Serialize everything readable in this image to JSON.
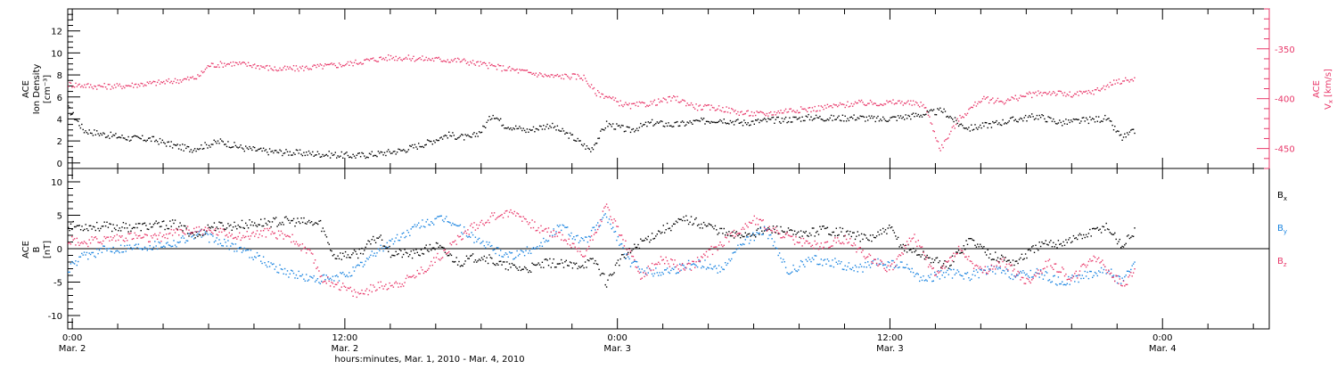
{
  "xlabel": "hours:minutes, Mar. 1, 2010 - Mar. 4, 2010",
  "x_ticks": [
    {
      "t": "0:00",
      "d": "Mar. 2",
      "hour": 24
    },
    {
      "t": "12:00",
      "d": "Mar. 2",
      "hour": 36
    },
    {
      "t": "0:00",
      "d": "Mar. 3",
      "hour": 48
    },
    {
      "t": "12:00",
      "d": "Mar. 3",
      "hour": 60
    },
    {
      "t": "0:00",
      "d": "Mar. 4",
      "hour": 72
    }
  ],
  "x_range_hours": [
    23.8,
    76.7
  ],
  "colors": {
    "black": "#000000",
    "blue": "#1a84e0",
    "pink": "#e8386a"
  },
  "chart_data": [
    {
      "type": "scatter",
      "left_ylabel_lines": [
        "ACE",
        "Ion Density",
        "[cm⁻³]"
      ],
      "right_ylabel": "ACE Vₓ [km/s]",
      "right_ylabel_text": "V",
      "right_ylabel_sub": "x",
      "right_ylabel_unit": "[km/s]",
      "right_ylabel_top": "ACE",
      "ylim_left": [
        -0.5,
        14
      ],
      "ylim_right": [
        -470,
        -310
      ],
      "left_ticks": [
        "0",
        "2",
        "4",
        "6",
        "8",
        "10",
        "12"
      ],
      "right_ticks": [
        "-350",
        "-400",
        "-450"
      ],
      "series": [
        {
          "axis": "left",
          "color": "#000000",
          "points": [
            [
              23.8,
              5.0
            ],
            [
              24.5,
              3.0
            ],
            [
              25.5,
              2.6
            ],
            [
              26.5,
              2.3
            ],
            [
              27.5,
              2.2
            ],
            [
              28.5,
              1.6
            ],
            [
              29.2,
              1.3
            ],
            [
              30.5,
              2.0
            ],
            [
              31.5,
              1.4
            ],
            [
              32.5,
              1.1
            ],
            [
              33.5,
              1.0
            ],
            [
              34.5,
              0.9
            ],
            [
              35.5,
              0.8
            ],
            [
              36.5,
              0.7
            ],
            [
              37.5,
              0.9
            ],
            [
              38.5,
              1.2
            ],
            [
              39.5,
              1.8
            ],
            [
              40.5,
              2.6
            ],
            [
              41.5,
              2.3
            ],
            [
              42.0,
              3.0
            ],
            [
              42.5,
              4.5
            ],
            [
              43.0,
              3.5
            ],
            [
              44.0,
              3.0
            ],
            [
              45.0,
              3.5
            ],
            [
              46.0,
              2.4
            ],
            [
              46.8,
              1.2
            ],
            [
              47.5,
              3.6
            ],
            [
              48.5,
              3.0
            ],
            [
              49.5,
              3.7
            ],
            [
              50.5,
              3.5
            ],
            [
              51.5,
              3.8
            ],
            [
              52.5,
              4.0
            ],
            [
              53.5,
              3.7
            ],
            [
              54.5,
              3.9
            ],
            [
              55.5,
              4.0
            ],
            [
              56.5,
              4.2
            ],
            [
              57.5,
              4.1
            ],
            [
              58.5,
              4.2
            ],
            [
              59.5,
              4.0
            ],
            [
              60.5,
              4.2
            ],
            [
              61.5,
              4.5
            ],
            [
              62.3,
              4.8
            ],
            [
              63.0,
              3.6
            ],
            [
              63.5,
              3.2
            ],
            [
              64.5,
              3.6
            ],
            [
              65.5,
              4.0
            ],
            [
              66.5,
              4.3
            ],
            [
              67.5,
              3.7
            ],
            [
              68.5,
              3.9
            ],
            [
              69.5,
              4.1
            ],
            [
              70.2,
              2.3
            ],
            [
              70.8,
              3.0
            ]
          ]
        },
        {
          "axis": "right",
          "color": "#e8386a",
          "points": [
            [
              23.8,
              -385
            ],
            [
              25.0,
              -387
            ],
            [
              26.0,
              -387
            ],
            [
              27.0,
              -385
            ],
            [
              28.0,
              -383
            ],
            [
              29.0,
              -380
            ],
            [
              29.5,
              -378
            ],
            [
              30.0,
              -366
            ],
            [
              31.0,
              -364
            ],
            [
              32.0,
              -366
            ],
            [
              33.0,
              -370
            ],
            [
              34.0,
              -369
            ],
            [
              35.0,
              -367
            ],
            [
              36.0,
              -365
            ],
            [
              37.0,
              -361
            ],
            [
              38.0,
              -358
            ],
            [
              39.0,
              -359
            ],
            [
              40.0,
              -360
            ],
            [
              41.0,
              -361
            ],
            [
              42.0,
              -365
            ],
            [
              43.0,
              -369
            ],
            [
              44.0,
              -373
            ],
            [
              45.0,
              -377
            ],
            [
              46.0,
              -377
            ],
            [
              46.5,
              -378
            ],
            [
              47.0,
              -393
            ],
            [
              47.5,
              -397
            ],
            [
              48.0,
              -403
            ],
            [
              48.5,
              -407
            ],
            [
              49.5,
              -404
            ],
            [
              50.5,
              -399
            ],
            [
              51.5,
              -408
            ],
            [
              52.5,
              -409
            ],
            [
              53.5,
              -414
            ],
            [
              54.5,
              -415
            ],
            [
              55.5,
              -411
            ],
            [
              56.5,
              -410
            ],
            [
              57.5,
              -407
            ],
            [
              58.5,
              -404
            ],
            [
              59.5,
              -404
            ],
            [
              60.5,
              -403
            ],
            [
              61.5,
              -406
            ],
            [
              62.2,
              -450
            ],
            [
              63.0,
              -420
            ],
            [
              64.0,
              -400
            ],
            [
              65.0,
              -402
            ],
            [
              66.0,
              -396
            ],
            [
              67.0,
              -393
            ],
            [
              68.0,
              -396
            ],
            [
              69.0,
              -392
            ],
            [
              70.0,
              -382
            ],
            [
              70.8,
              -380
            ]
          ]
        }
      ]
    },
    {
      "type": "scatter",
      "left_ylabel_lines": [
        "ACE",
        "B",
        "[nT]"
      ],
      "ylim": [
        -12,
        12
      ],
      "left_ticks": [
        "10",
        "5",
        "0",
        "-5",
        "-10"
      ],
      "legend": [
        {
          "name": "B",
          "sub": "x",
          "color": "#000000"
        },
        {
          "name": "B",
          "sub": "y",
          "color": "#1a84e0"
        },
        {
          "name": "B",
          "sub": "z",
          "color": "#e8386a"
        }
      ],
      "legend_placement": "right",
      "zero_line": true,
      "series": [
        {
          "name": "Bx",
          "color": "#000000",
          "points": [
            [
              23.8,
              3.5
            ],
            [
              25.0,
              3.4
            ],
            [
              26.5,
              3.3
            ],
            [
              28.5,
              3.7
            ],
            [
              29.5,
              2.0
            ],
            [
              30.0,
              3.4
            ],
            [
              31.0,
              3.5
            ],
            [
              32.5,
              4.0
            ],
            [
              33.5,
              4.2
            ],
            [
              34.9,
              3.8
            ],
            [
              35.5,
              -1.0
            ],
            [
              36.5,
              -0.8
            ],
            [
              37.5,
              2.0
            ],
            [
              38.0,
              -0.5
            ],
            [
              39.0,
              -0.8
            ],
            [
              40.0,
              0.5
            ],
            [
              41.0,
              -2.0
            ],
            [
              42.0,
              -1.0
            ],
            [
              43.0,
              -2.5
            ],
            [
              44.0,
              -3.0
            ],
            [
              45.0,
              -2.0
            ],
            [
              46.0,
              -2.5
            ],
            [
              47.0,
              -1.8
            ],
            [
              47.5,
              -5.0
            ],
            [
              48.0,
              -2.0
            ],
            [
              49.0,
              1.0
            ],
            [
              50.0,
              3.0
            ],
            [
              51.0,
              4.5
            ],
            [
              52.0,
              3.5
            ],
            [
              53.0,
              2.0
            ],
            [
              54.0,
              2.5
            ],
            [
              55.0,
              3.0
            ],
            [
              56.0,
              2.0
            ],
            [
              57.0,
              3.0
            ],
            [
              58.0,
              2.5
            ],
            [
              59.0,
              1.5
            ],
            [
              60.0,
              3.0
            ],
            [
              60.5,
              0.5
            ],
            [
              61.5,
              -1.0
            ],
            [
              62.5,
              -2.5
            ],
            [
              63.5,
              1.5
            ],
            [
              64.5,
              -1.0
            ],
            [
              65.5,
              -2.0
            ],
            [
              66.5,
              0.5
            ],
            [
              67.5,
              1.0
            ],
            [
              68.5,
              2.0
            ],
            [
              69.5,
              3.5
            ],
            [
              70.2,
              0.5
            ],
            [
              70.8,
              3.0
            ]
          ]
        },
        {
          "name": "By",
          "color": "#1a84e0",
          "points": [
            [
              23.8,
              -3.0
            ],
            [
              24.5,
              -1.0
            ],
            [
              25.5,
              0.0
            ],
            [
              26.5,
              0.3
            ],
            [
              27.5,
              0.6
            ],
            [
              28.5,
              1.0
            ],
            [
              29.5,
              2.5
            ],
            [
              30.5,
              1.0
            ],
            [
              31.5,
              0.0
            ],
            [
              32.5,
              -2.0
            ],
            [
              33.5,
              -3.5
            ],
            [
              34.5,
              -4.5
            ],
            [
              35.5,
              -4.5
            ],
            [
              36.5,
              -3.0
            ],
            [
              37.5,
              0.0
            ],
            [
              38.5,
              2.0
            ],
            [
              39.5,
              4.0
            ],
            [
              40.5,
              4.5
            ],
            [
              41.5,
              2.0
            ],
            [
              42.5,
              0.0
            ],
            [
              43.5,
              -1.0
            ],
            [
              44.5,
              0.5
            ],
            [
              45.5,
              3.5
            ],
            [
              46.5,
              1.0
            ],
            [
              47.5,
              5.0
            ],
            [
              48.5,
              -2.0
            ],
            [
              49.5,
              -3.5
            ],
            [
              50.5,
              -3.0
            ],
            [
              51.5,
              -2.0
            ],
            [
              52.5,
              -3.0
            ],
            [
              53.5,
              1.0
            ],
            [
              54.5,
              3.0
            ],
            [
              55.5,
              -3.5
            ],
            [
              56.5,
              -1.5
            ],
            [
              57.5,
              -2.0
            ],
            [
              58.5,
              -3.0
            ],
            [
              59.5,
              -2.0
            ],
            [
              60.5,
              -2.5
            ],
            [
              61.5,
              -4.5
            ],
            [
              62.5,
              -3.5
            ],
            [
              63.5,
              -4.0
            ],
            [
              64.5,
              -3.0
            ],
            [
              65.5,
              -4.0
            ],
            [
              66.5,
              -3.5
            ],
            [
              67.5,
              -5.0
            ],
            [
              68.5,
              -4.0
            ],
            [
              69.5,
              -3.0
            ],
            [
              70.2,
              -5.0
            ],
            [
              70.8,
              -2.0
            ]
          ]
        },
        {
          "name": "Bz",
          "color": "#e8386a",
          "points": [
            [
              23.8,
              1.5
            ],
            [
              24.5,
              1.0
            ],
            [
              25.5,
              1.5
            ],
            [
              26.5,
              2.0
            ],
            [
              27.5,
              1.5
            ],
            [
              28.5,
              2.5
            ],
            [
              29.5,
              3.0
            ],
            [
              30.5,
              2.5
            ],
            [
              31.5,
              2.0
            ],
            [
              32.5,
              2.5
            ],
            [
              33.5,
              2.0
            ],
            [
              34.5,
              -1.0
            ],
            [
              35.0,
              -4.5
            ],
            [
              35.5,
              -5.0
            ],
            [
              36.5,
              -6.8
            ],
            [
              37.5,
              -5.5
            ],
            [
              38.5,
              -5.0
            ],
            [
              39.5,
              -3.0
            ],
            [
              40.5,
              0.0
            ],
            [
              41.5,
              3.0
            ],
            [
              42.5,
              5.0
            ],
            [
              43.5,
              5.5
            ],
            [
              44.5,
              3.0
            ],
            [
              45.5,
              2.0
            ],
            [
              46.5,
              -1.0
            ],
            [
              47.5,
              6.5
            ],
            [
              48.0,
              3.0
            ],
            [
              49.0,
              -4.0
            ],
            [
              50.0,
              -1.5
            ],
            [
              51.0,
              -3.0
            ],
            [
              52.0,
              -0.5
            ],
            [
              53.0,
              2.0
            ],
            [
              54.0,
              4.5
            ],
            [
              55.0,
              2.5
            ],
            [
              56.0,
              1.0
            ],
            [
              57.0,
              0.5
            ],
            [
              58.0,
              1.5
            ],
            [
              59.0,
              -1.0
            ],
            [
              60.0,
              -3.0
            ],
            [
              61.0,
              2.0
            ],
            [
              62.0,
              -4.0
            ],
            [
              63.0,
              0.0
            ],
            [
              64.0,
              -3.5
            ],
            [
              65.0,
              -2.0
            ],
            [
              66.0,
              -5.0
            ],
            [
              67.0,
              -2.0
            ],
            [
              68.0,
              -4.5
            ],
            [
              69.0,
              -1.0
            ],
            [
              70.2,
              -5.5
            ],
            [
              70.8,
              -3.0
            ]
          ]
        }
      ]
    }
  ]
}
